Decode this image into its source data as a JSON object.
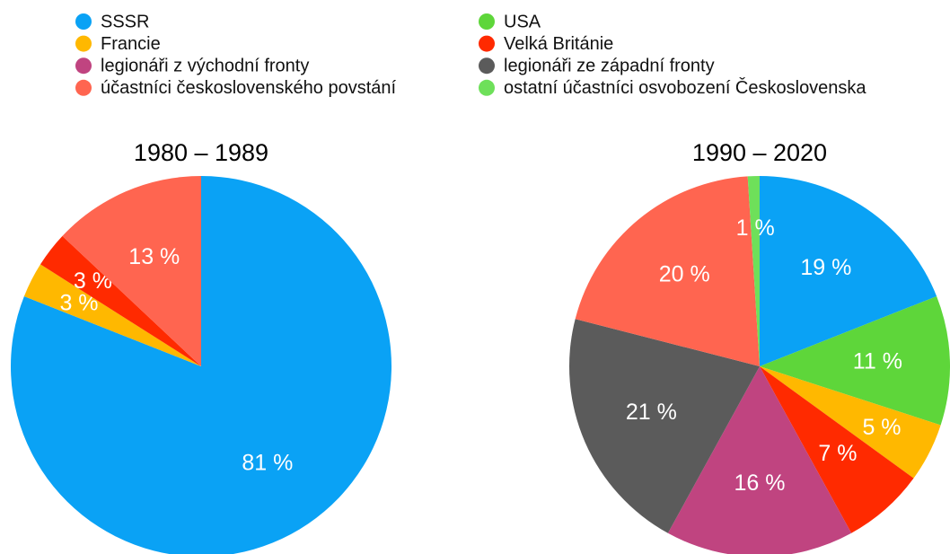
{
  "chart_data": [
    {
      "type": "pie",
      "title": "1980 – 1989",
      "categories": [
        "SSSR",
        "Francie",
        "Velká Británie",
        "účastníci československého povstání"
      ],
      "values": [
        81,
        3,
        3,
        13
      ],
      "value_labels": [
        "81 %",
        "3 %",
        "3 %",
        "13 %"
      ]
    },
    {
      "type": "pie",
      "title": "1990 – 2020",
      "categories": [
        "SSSR",
        "USA",
        "Francie",
        "Velká Británie",
        "legionáři z východní fronty",
        "legionáři ze západní fronty",
        "účastníci československého povstání",
        "ostatní účastníci osvobození Československa"
      ],
      "values": [
        19,
        11,
        5,
        7,
        16,
        21,
        20,
        1
      ],
      "value_labels": [
        "19 %",
        "11 %",
        "5 %",
        "7 %",
        "16 %",
        "21 %",
        "20 %",
        "1 %"
      ],
      "colors": [
        "#0aa2f5",
        "#5ed63a",
        "#ffb800",
        "#ff2a00",
        "#c04480",
        "#5b5b5b",
        "#ff6550",
        "#6ee05a"
      ]
    }
  ]
}
